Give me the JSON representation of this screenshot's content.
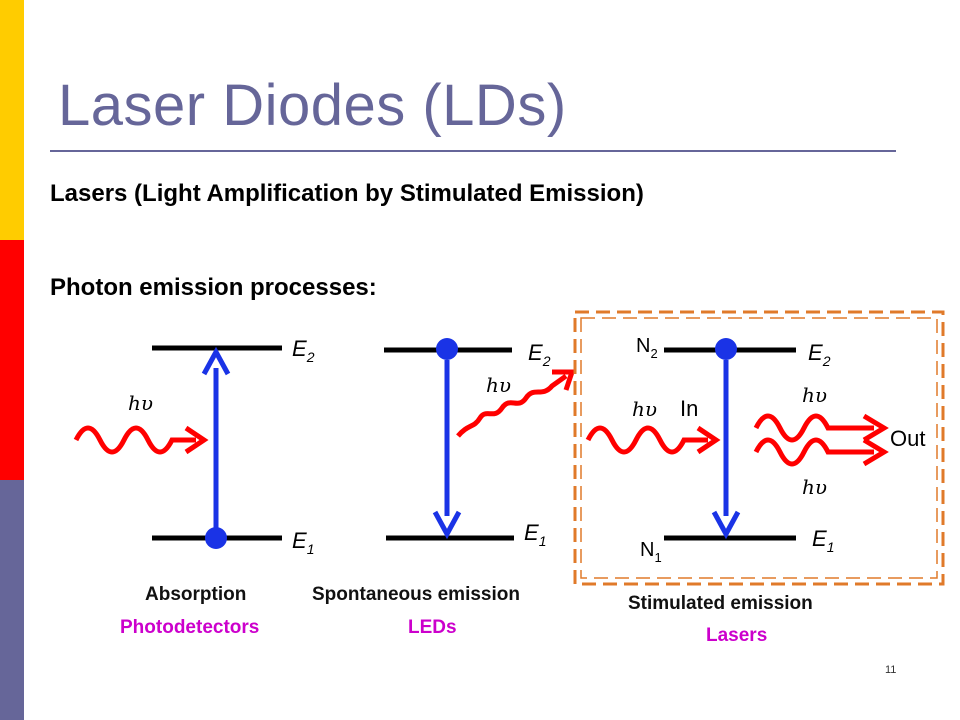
{
  "slide": {
    "title": "Laser Diodes (LDs)",
    "bullets": [
      "Lasers (Light Amplification by Stimulated Emission)",
      "Photon emission processes:"
    ],
    "page_number": "11"
  },
  "diagram": {
    "symbols": {
      "hv": "hυ",
      "e2": "E2",
      "e1": "E1",
      "n2": "N2",
      "n1": "N1",
      "in": "In",
      "out": "Out"
    },
    "panels": [
      {
        "process": "Absorption",
        "application": "Photodetectors"
      },
      {
        "process": "Spontaneous emission",
        "application": "LEDs"
      },
      {
        "process": "Stimulated emission",
        "application": "Lasers"
      }
    ]
  },
  "colors": {
    "title": "#666699",
    "wave": "#ff0000",
    "arrow": "#1a33e6",
    "highlight_box": "#e07a2a",
    "application": "#cc00cc",
    "side_bar": [
      "#ffcc00",
      "#ff0000",
      "#666699"
    ]
  }
}
